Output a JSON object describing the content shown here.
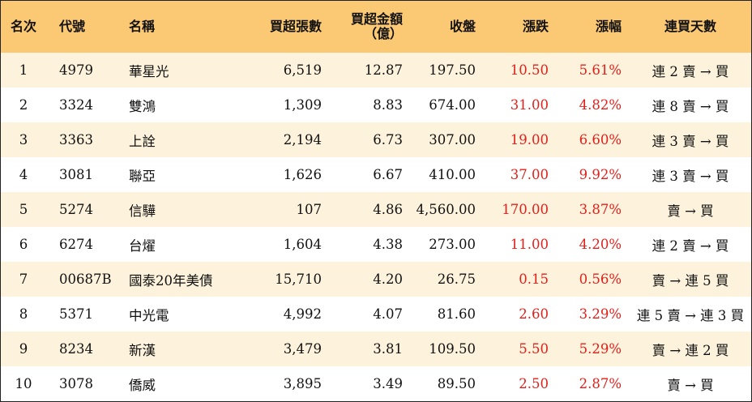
{
  "header": {
    "rank": "名次",
    "code": "代號",
    "name": "名稱",
    "volume": "買超張數",
    "amount_line1": "買超金額",
    "amount_line2": "（億）",
    "close": "收盤",
    "change": "漲跌",
    "pct": "漲幅",
    "days": "連買天數"
  },
  "rows": [
    {
      "rank": "1",
      "code": "4979",
      "name": "華星光",
      "volume": "6,519",
      "amount": "12.87",
      "close": "197.50",
      "change": "10.50",
      "pct": "5.61%",
      "days": "連 2 賣 → 買"
    },
    {
      "rank": "2",
      "code": "3324",
      "name": "雙鴻",
      "volume": "1,309",
      "amount": "8.83",
      "close": "674.00",
      "change": "31.00",
      "pct": "4.82%",
      "days": "連 8 賣 → 買"
    },
    {
      "rank": "3",
      "code": "3363",
      "name": "上詮",
      "volume": "2,194",
      "amount": "6.73",
      "close": "307.00",
      "change": "19.00",
      "pct": "6.60%",
      "days": "連 3 賣 → 買"
    },
    {
      "rank": "4",
      "code": "3081",
      "name": "聯亞",
      "volume": "1,626",
      "amount": "6.67",
      "close": "410.00",
      "change": "37.00",
      "pct": "9.92%",
      "days": "連 3 賣 → 買"
    },
    {
      "rank": "5",
      "code": "5274",
      "name": "信驊",
      "volume": "107",
      "amount": "4.86",
      "close": "4,560.00",
      "change": "170.00",
      "pct": "3.87%",
      "days": "賣 → 買"
    },
    {
      "rank": "6",
      "code": "6274",
      "name": "台燿",
      "volume": "1,604",
      "amount": "4.38",
      "close": "273.00",
      "change": "11.00",
      "pct": "4.20%",
      "days": "連 2 賣 → 買"
    },
    {
      "rank": "7",
      "code": "00687B",
      "name": "國泰20年美債",
      "volume": "15,710",
      "amount": "4.20",
      "close": "26.75",
      "change": "0.15",
      "pct": "0.56%",
      "days": "賣 → 連 5 買"
    },
    {
      "rank": "8",
      "code": "5371",
      "name": "中光電",
      "volume": "4,992",
      "amount": "4.07",
      "close": "81.60",
      "change": "2.60",
      "pct": "3.29%",
      "days": "連 5 賣 → 連 3 買"
    },
    {
      "rank": "9",
      "code": "8234",
      "name": "新漢",
      "volume": "3,479",
      "amount": "3.81",
      "close": "109.50",
      "change": "5.50",
      "pct": "5.29%",
      "days": "賣 → 連 2 買"
    },
    {
      "rank": "10",
      "code": "3078",
      "name": "僑威",
      "volume": "3,895",
      "amount": "3.49",
      "close": "89.50",
      "change": "2.50",
      "pct": "2.87%",
      "days": "賣 → 買"
    }
  ],
  "colors": {
    "header_bg": "#fbc874",
    "row_odd_bg": "#fdf2dc",
    "row_even_bg": "#ffffff",
    "up_text": "#e0201b"
  }
}
